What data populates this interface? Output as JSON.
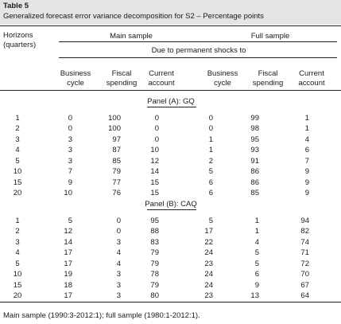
{
  "header": {
    "label": "Table 5",
    "title": "Generalized forecast error variance decomposition for S2 – Percentage points"
  },
  "table": {
    "horizon_header": [
      "Horizons",
      "(quarters)"
    ],
    "groups": [
      "Main sample",
      "Full sample"
    ],
    "subheader": "Due to permanent shocks to",
    "columns": [
      [
        "Business",
        "cycle"
      ],
      [
        "Fiscal",
        "spending"
      ],
      [
        "Current",
        "account"
      ],
      [
        "Business",
        "cycle"
      ],
      [
        "Fiscal",
        "spending"
      ],
      [
        "Current",
        "account"
      ]
    ],
    "panels": [
      {
        "title": "Panel (A): GQ",
        "rows": [
          [
            "1",
            "0",
            "100",
            "0",
            "0",
            "99",
            "1"
          ],
          [
            "2",
            "0",
            "100",
            "0",
            "0",
            "98",
            "1"
          ],
          [
            "3",
            "3",
            "97",
            "0",
            "1",
            "95",
            "4"
          ],
          [
            "4",
            "3",
            "87",
            "10",
            "1",
            "93",
            "6"
          ],
          [
            "5",
            "3",
            "85",
            "12",
            "2",
            "91",
            "7"
          ],
          [
            "10",
            "7",
            "79",
            "14",
            "5",
            "86",
            "9"
          ],
          [
            "15",
            "9",
            "77",
            "15",
            "6",
            "86",
            "9"
          ],
          [
            "20",
            "10",
            "76",
            "15",
            "6",
            "85",
            "9"
          ]
        ]
      },
      {
        "title": "Panel (B): CAQ",
        "rows": [
          [
            "1",
            "5",
            "0",
            "95",
            "5",
            "1",
            "94"
          ],
          [
            "2",
            "12",
            "0",
            "88",
            "17",
            "1",
            "82"
          ],
          [
            "3",
            "14",
            "3",
            "83",
            "22",
            "4",
            "74"
          ],
          [
            "4",
            "17",
            "4",
            "79",
            "24",
            "5",
            "71"
          ],
          [
            "5",
            "17",
            "4",
            "79",
            "23",
            "5",
            "72"
          ],
          [
            "10",
            "19",
            "3",
            "78",
            "24",
            "6",
            "70"
          ],
          [
            "15",
            "18",
            "3",
            "79",
            "24",
            "9",
            "67"
          ],
          [
            "20",
            "17",
            "3",
            "80",
            "23",
            "13",
            "64"
          ]
        ]
      }
    ],
    "footnote": "Main sample (1990:3-2012:1); full sample (1980:1-2012:1)."
  }
}
